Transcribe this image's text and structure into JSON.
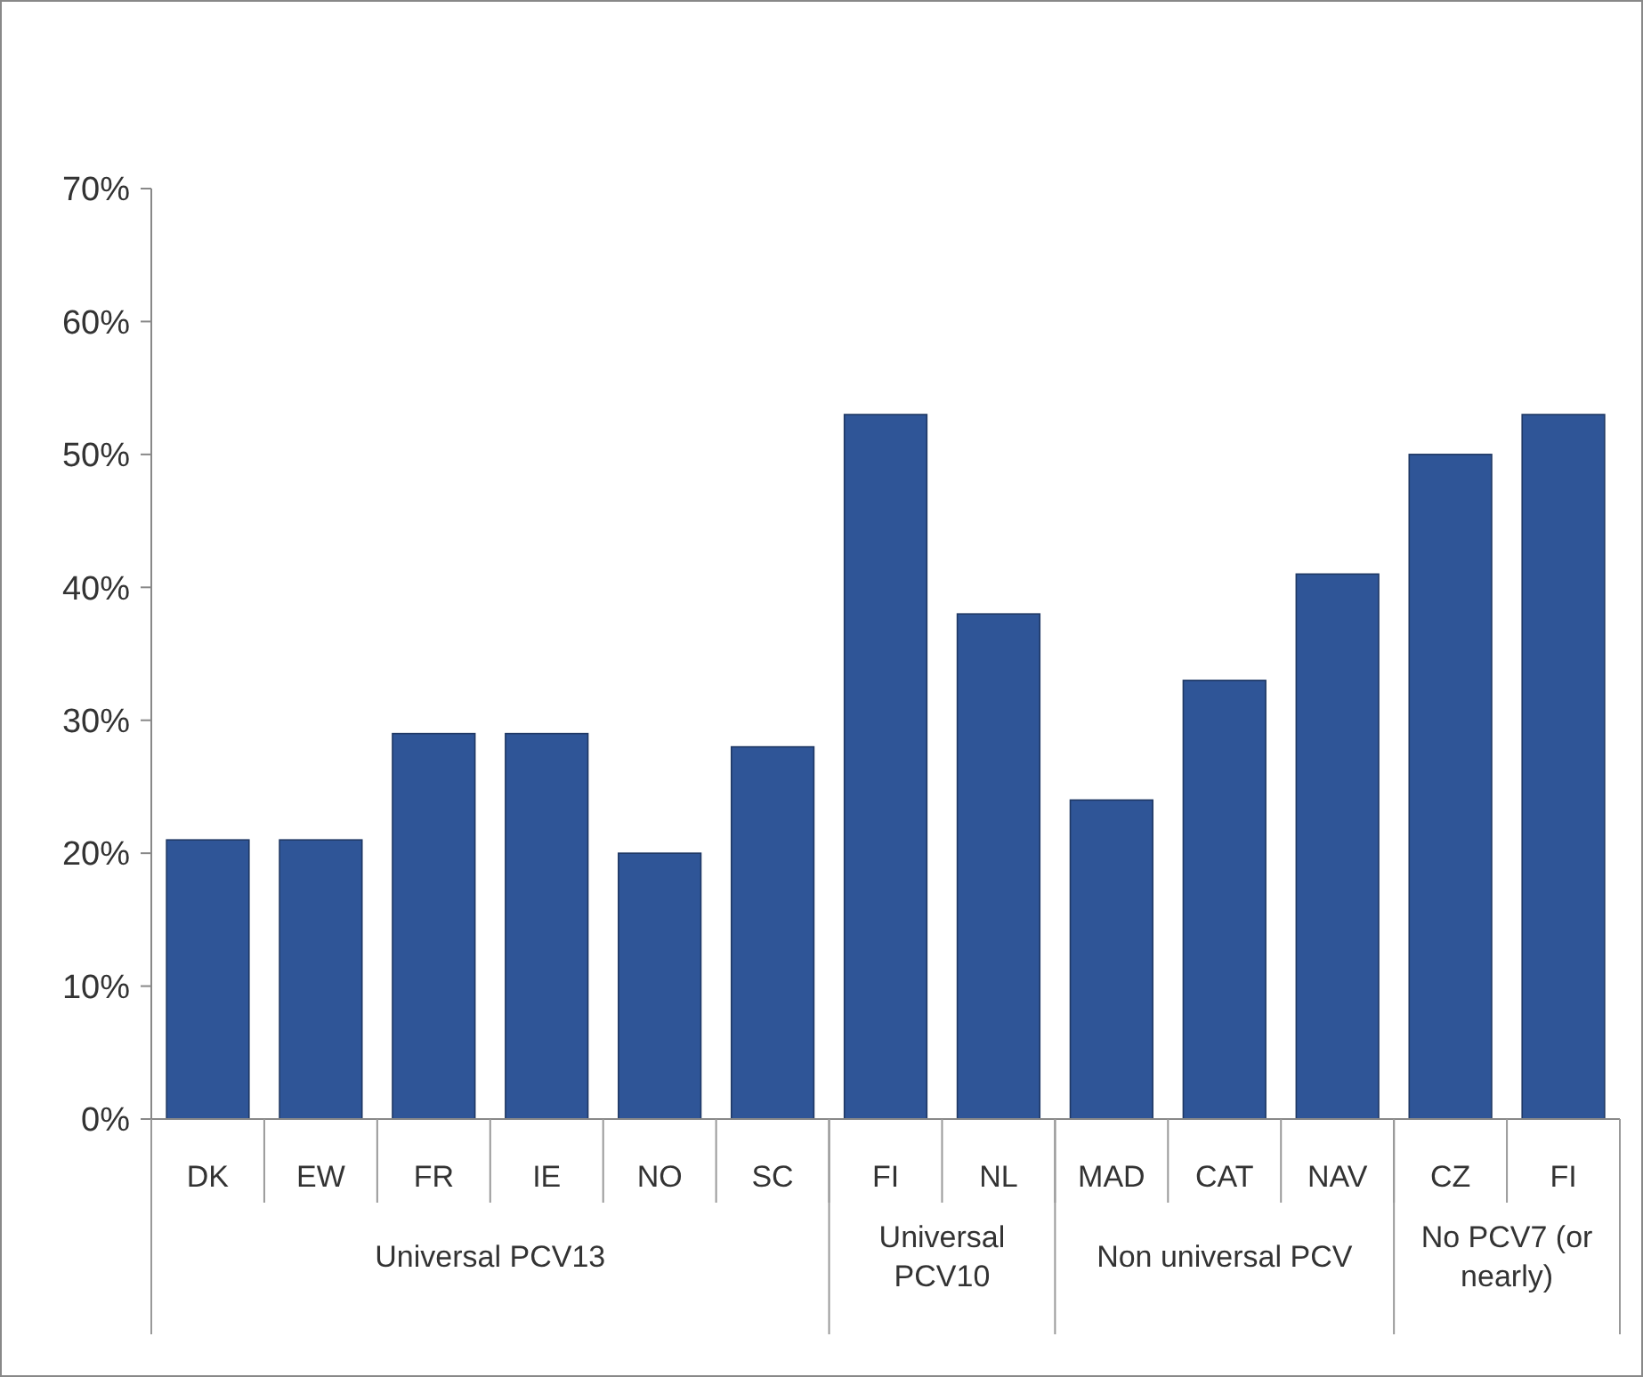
{
  "chart_data": {
    "type": "bar",
    "categories": [
      "DK",
      "EW",
      "FR",
      "IE",
      "NO",
      "SC",
      "FI",
      "NL",
      "MAD",
      "CAT",
      "NAV",
      "CZ",
      "FI"
    ],
    "values": [
      21,
      21,
      29,
      29,
      20,
      28,
      53,
      38,
      24,
      33,
      41,
      50,
      53
    ],
    "color": "#2f5597",
    "ylim": [
      0,
      70
    ],
    "yticks": [
      {
        "value": 0,
        "label": "0%"
      },
      {
        "value": 10,
        "label": "10%"
      },
      {
        "value": 20,
        "label": "20%"
      },
      {
        "value": 30,
        "label": "30%"
      },
      {
        "value": 40,
        "label": "40%"
      },
      {
        "value": 50,
        "label": "50%"
      },
      {
        "value": 60,
        "label": "60%"
      },
      {
        "value": 70,
        "label": "70%"
      }
    ],
    "grid": false,
    "annotations": [
      "Universal PCV13",
      "Universal PCV10",
      "Non universal PCV",
      "No PCV7 (or nearly)"
    ]
  }
}
